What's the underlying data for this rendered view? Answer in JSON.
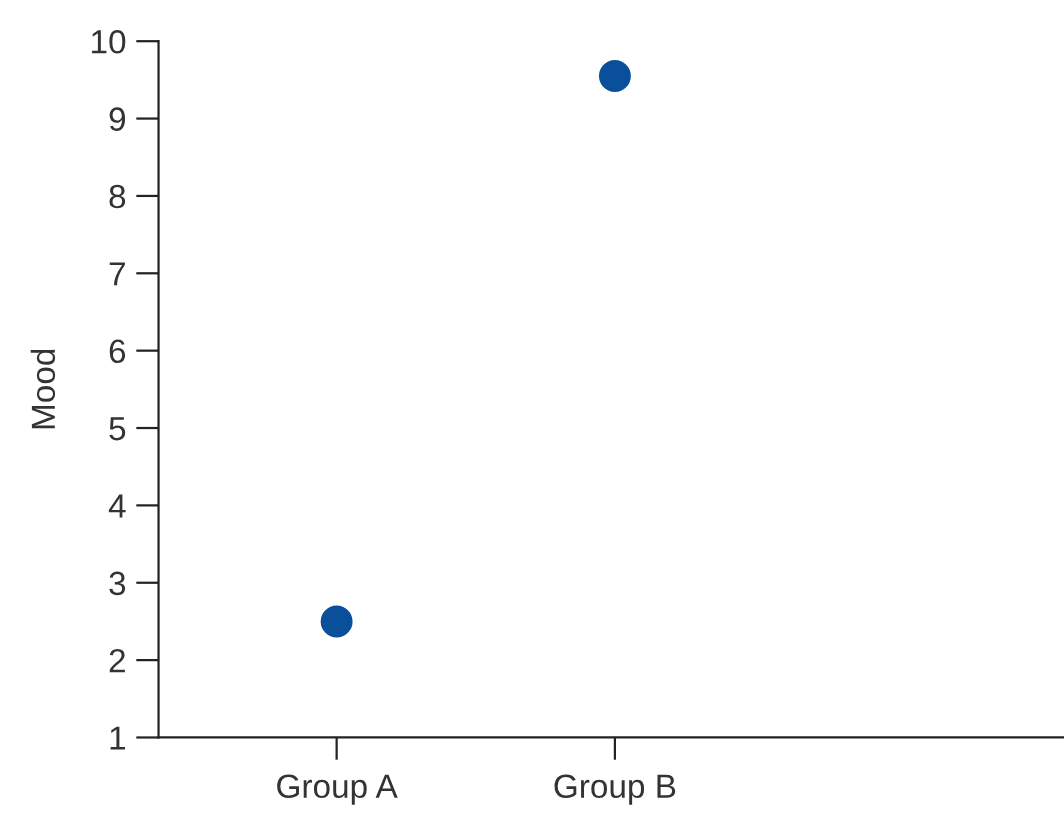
{
  "chart_data": {
    "type": "scatter",
    "ylabel": "Mood",
    "categories": [
      "Group A",
      "Group B"
    ],
    "series": [
      {
        "color": "#0a4f9a",
        "values": [
          2.5,
          9.55
        ]
      }
    ],
    "ylim": [
      1,
      10
    ],
    "yticks": [
      1,
      2,
      3,
      4,
      5,
      6,
      7,
      8,
      9,
      10
    ],
    "marker": "circle"
  }
}
